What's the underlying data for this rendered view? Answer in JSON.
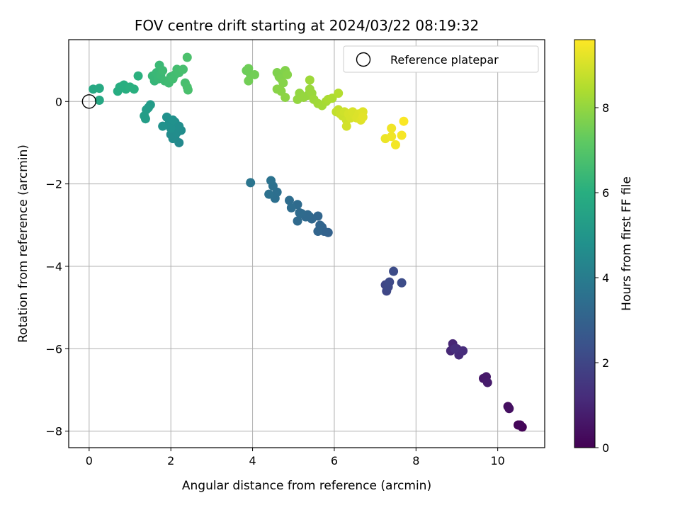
{
  "chart_data": {
    "type": "scatter",
    "title": "FOV centre drift starting at 2024/03/22 08:19:32",
    "xlabel": "Angular distance from reference (arcmin)",
    "ylabel": "Rotation from reference (arcmin)",
    "xlim": [
      -0.5,
      11.15
    ],
    "ylim": [
      -8.4,
      1.5
    ],
    "xticks": [
      0,
      2,
      4,
      6,
      8,
      10
    ],
    "yticks": [
      0,
      -2,
      -4,
      -6,
      -8
    ],
    "xtick_labels": [
      "0",
      "2",
      "4",
      "6",
      "8",
      "10"
    ],
    "ytick_labels": [
      "0",
      "−2",
      "−4",
      "−6",
      "−8"
    ],
    "grid": true,
    "legend": {
      "position": "top-right",
      "label": "Reference platepar"
    },
    "reference_point": {
      "x": 0,
      "y": 0
    },
    "colorbar": {
      "label": "Hours from first FF file",
      "colormap": "viridis",
      "range": [
        0,
        9.6
      ],
      "ticks": [
        0,
        2,
        4,
        6,
        8
      ],
      "tick_labels": [
        "0",
        "2",
        "4",
        "6",
        "8"
      ]
    },
    "points": [
      {
        "x": 10.6,
        "y": -7.9,
        "t": 0.05
      },
      {
        "x": 10.5,
        "y": -7.85,
        "t": 0.1
      },
      {
        "x": 10.55,
        "y": -7.85,
        "t": 0.15
      },
      {
        "x": 10.25,
        "y": -7.4,
        "t": 0.35
      },
      {
        "x": 10.28,
        "y": -7.45,
        "t": 0.4
      },
      {
        "x": 9.65,
        "y": -6.72,
        "t": 0.6
      },
      {
        "x": 9.72,
        "y": -6.68,
        "t": 0.65
      },
      {
        "x": 9.75,
        "y": -6.82,
        "t": 0.7
      },
      {
        "x": 8.9,
        "y": -5.88,
        "t": 1.0
      },
      {
        "x": 8.85,
        "y": -6.05,
        "t": 1.05
      },
      {
        "x": 9.0,
        "y": -6.0,
        "t": 1.1
      },
      {
        "x": 9.05,
        "y": -6.15,
        "t": 1.15
      },
      {
        "x": 9.15,
        "y": -6.05,
        "t": 1.2
      },
      {
        "x": 8.95,
        "y": -6.0,
        "t": 1.25
      },
      {
        "x": 7.25,
        "y": -4.45,
        "t": 2.0
      },
      {
        "x": 7.28,
        "y": -4.6,
        "t": 2.05
      },
      {
        "x": 7.32,
        "y": -4.5,
        "t": 2.1
      },
      {
        "x": 7.35,
        "y": -4.38,
        "t": 2.15
      },
      {
        "x": 7.45,
        "y": -4.12,
        "t": 2.2
      },
      {
        "x": 7.65,
        "y": -4.4,
        "t": 2.25
      },
      {
        "x": 5.85,
        "y": -3.18,
        "t": 3.0
      },
      {
        "x": 5.7,
        "y": -3.05,
        "t": 3.05
      },
      {
        "x": 5.75,
        "y": -3.15,
        "t": 3.05
      },
      {
        "x": 5.6,
        "y": -3.15,
        "t": 3.1
      },
      {
        "x": 5.65,
        "y": -3.0,
        "t": 3.1
      },
      {
        "x": 5.6,
        "y": -2.78,
        "t": 3.15
      },
      {
        "x": 5.45,
        "y": -2.85,
        "t": 3.2
      },
      {
        "x": 5.4,
        "y": -2.8,
        "t": 3.2
      },
      {
        "x": 5.35,
        "y": -2.75,
        "t": 3.25
      },
      {
        "x": 5.3,
        "y": -2.8,
        "t": 3.25
      },
      {
        "x": 5.2,
        "y": -2.72,
        "t": 3.3
      },
      {
        "x": 5.1,
        "y": -2.9,
        "t": 3.3
      },
      {
        "x": 5.15,
        "y": -2.7,
        "t": 3.35
      },
      {
        "x": 5.1,
        "y": -2.5,
        "t": 3.35
      },
      {
        "x": 4.95,
        "y": -2.58,
        "t": 3.4
      },
      {
        "x": 4.9,
        "y": -2.4,
        "t": 3.4
      },
      {
        "x": 4.55,
        "y": -2.35,
        "t": 3.5
      },
      {
        "x": 4.6,
        "y": -2.2,
        "t": 3.5
      },
      {
        "x": 4.4,
        "y": -2.25,
        "t": 3.55
      },
      {
        "x": 4.5,
        "y": -2.05,
        "t": 3.55
      },
      {
        "x": 4.45,
        "y": -1.92,
        "t": 3.6
      },
      {
        "x": 3.95,
        "y": -1.97,
        "t": 3.7
      },
      {
        "x": 2.2,
        "y": -1.0,
        "t": 4.5
      },
      {
        "x": 2.1,
        "y": -0.85,
        "t": 4.55
      },
      {
        "x": 2.05,
        "y": -0.9,
        "t": 4.6
      },
      {
        "x": 2.0,
        "y": -0.8,
        "t": 4.6
      },
      {
        "x": 2.15,
        "y": -0.75,
        "t": 4.65
      },
      {
        "x": 2.25,
        "y": -0.7,
        "t": 4.65
      },
      {
        "x": 2.2,
        "y": -0.6,
        "t": 4.7
      },
      {
        "x": 2.1,
        "y": -0.5,
        "t": 4.7
      },
      {
        "x": 2.0,
        "y": -0.65,
        "t": 4.75
      },
      {
        "x": 1.95,
        "y": -0.55,
        "t": 4.75
      },
      {
        "x": 2.05,
        "y": -0.45,
        "t": 4.8
      },
      {
        "x": 1.9,
        "y": -0.38,
        "t": 4.8
      },
      {
        "x": 1.8,
        "y": -0.6,
        "t": 4.85
      },
      {
        "x": 1.5,
        "y": -0.08,
        "t": 5.2
      },
      {
        "x": 1.45,
        "y": -0.15,
        "t": 5.25
      },
      {
        "x": 1.4,
        "y": -0.2,
        "t": 5.25
      },
      {
        "x": 1.35,
        "y": -0.35,
        "t": 5.3
      },
      {
        "x": 1.38,
        "y": -0.42,
        "t": 5.3
      },
      {
        "x": 0.25,
        "y": 0.03,
        "t": 5.7
      },
      {
        "x": 0.1,
        "y": 0.3,
        "t": 5.75
      },
      {
        "x": 0.25,
        "y": 0.32,
        "t": 5.8
      },
      {
        "x": 0.7,
        "y": 0.25,
        "t": 5.9
      },
      {
        "x": 0.75,
        "y": 0.35,
        "t": 5.95
      },
      {
        "x": 0.85,
        "y": 0.4,
        "t": 6.0
      },
      {
        "x": 0.9,
        "y": 0.3,
        "t": 6.0
      },
      {
        "x": 1.0,
        "y": 0.35,
        "t": 6.05
      },
      {
        "x": 1.1,
        "y": 0.3,
        "t": 6.05
      },
      {
        "x": 1.2,
        "y": 0.62,
        "t": 6.1
      },
      {
        "x": 1.6,
        "y": 0.5,
        "t": 6.3
      },
      {
        "x": 1.55,
        "y": 0.62,
        "t": 6.35
      },
      {
        "x": 1.65,
        "y": 0.7,
        "t": 6.4
      },
      {
        "x": 1.7,
        "y": 0.55,
        "t": 6.4
      },
      {
        "x": 1.75,
        "y": 0.65,
        "t": 6.45
      },
      {
        "x": 1.72,
        "y": 0.88,
        "t": 6.45
      },
      {
        "x": 1.8,
        "y": 0.75,
        "t": 6.5
      },
      {
        "x": 1.85,
        "y": 0.5,
        "t": 6.5
      },
      {
        "x": 1.95,
        "y": 0.45,
        "t": 6.55
      },
      {
        "x": 2.0,
        "y": 0.6,
        "t": 6.55
      },
      {
        "x": 2.05,
        "y": 0.55,
        "t": 6.6
      },
      {
        "x": 2.1,
        "y": 0.65,
        "t": 6.6
      },
      {
        "x": 2.15,
        "y": 0.78,
        "t": 6.65
      },
      {
        "x": 2.2,
        "y": 0.7,
        "t": 6.65
      },
      {
        "x": 2.3,
        "y": 0.78,
        "t": 6.7
      },
      {
        "x": 2.35,
        "y": 0.45,
        "t": 6.7
      },
      {
        "x": 2.4,
        "y": 0.35,
        "t": 6.75
      },
      {
        "x": 2.42,
        "y": 0.28,
        "t": 6.75
      },
      {
        "x": 2.4,
        "y": 1.07,
        "t": 6.8
      },
      {
        "x": 3.85,
        "y": 0.75,
        "t": 7.4
      },
      {
        "x": 3.9,
        "y": 0.8,
        "t": 7.45
      },
      {
        "x": 3.95,
        "y": 0.65,
        "t": 7.45
      },
      {
        "x": 4.05,
        "y": 0.65,
        "t": 7.5
      },
      {
        "x": 3.9,
        "y": 0.5,
        "t": 7.5
      },
      {
        "x": 4.6,
        "y": 0.7,
        "t": 7.7
      },
      {
        "x": 4.65,
        "y": 0.6,
        "t": 7.7
      },
      {
        "x": 4.7,
        "y": 0.55,
        "t": 7.75
      },
      {
        "x": 4.8,
        "y": 0.75,
        "t": 7.75
      },
      {
        "x": 4.85,
        "y": 0.65,
        "t": 7.8
      },
      {
        "x": 4.75,
        "y": 0.45,
        "t": 7.8
      },
      {
        "x": 4.6,
        "y": 0.3,
        "t": 7.85
      },
      {
        "x": 4.7,
        "y": 0.25,
        "t": 7.85
      },
      {
        "x": 4.8,
        "y": 0.1,
        "t": 7.9
      },
      {
        "x": 5.1,
        "y": 0.05,
        "t": 8.0
      },
      {
        "x": 5.15,
        "y": 0.2,
        "t": 8.0
      },
      {
        "x": 5.25,
        "y": 0.1,
        "t": 8.05
      },
      {
        "x": 5.35,
        "y": 0.15,
        "t": 8.05
      },
      {
        "x": 5.4,
        "y": 0.3,
        "t": 8.1
      },
      {
        "x": 5.45,
        "y": 0.2,
        "t": 8.1
      },
      {
        "x": 5.4,
        "y": 0.52,
        "t": 8.15
      },
      {
        "x": 5.5,
        "y": 0.05,
        "t": 8.15
      },
      {
        "x": 5.6,
        "y": -0.05,
        "t": 8.2
      },
      {
        "x": 5.7,
        "y": -0.1,
        "t": 8.25
      },
      {
        "x": 5.8,
        "y": 0.0,
        "t": 8.3
      },
      {
        "x": 5.85,
        "y": 0.05,
        "t": 8.35
      },
      {
        "x": 5.95,
        "y": 0.08,
        "t": 8.4
      },
      {
        "x": 6.1,
        "y": 0.2,
        "t": 8.5
      },
      {
        "x": 6.05,
        "y": -0.25,
        "t": 8.7
      },
      {
        "x": 6.1,
        "y": -0.2,
        "t": 8.75
      },
      {
        "x": 6.15,
        "y": -0.3,
        "t": 8.8
      },
      {
        "x": 6.2,
        "y": -0.35,
        "t": 8.85
      },
      {
        "x": 6.25,
        "y": -0.25,
        "t": 8.9
      },
      {
        "x": 6.3,
        "y": -0.45,
        "t": 8.9
      },
      {
        "x": 6.3,
        "y": -0.6,
        "t": 8.95
      },
      {
        "x": 6.35,
        "y": -0.3,
        "t": 9.0
      },
      {
        "x": 6.4,
        "y": -0.4,
        "t": 9.0
      },
      {
        "x": 6.45,
        "y": -0.25,
        "t": 9.05
      },
      {
        "x": 6.5,
        "y": -0.35,
        "t": 9.05
      },
      {
        "x": 6.55,
        "y": -0.4,
        "t": 9.1
      },
      {
        "x": 6.6,
        "y": -0.3,
        "t": 9.1
      },
      {
        "x": 6.65,
        "y": -0.45,
        "t": 9.15
      },
      {
        "x": 6.7,
        "y": -0.25,
        "t": 9.15
      },
      {
        "x": 6.7,
        "y": -0.38,
        "t": 9.2
      },
      {
        "x": 7.25,
        "y": -0.9,
        "t": 9.35
      },
      {
        "x": 7.4,
        "y": -0.65,
        "t": 9.4
      },
      {
        "x": 7.4,
        "y": -0.85,
        "t": 9.4
      },
      {
        "x": 7.5,
        "y": -1.05,
        "t": 9.45
      },
      {
        "x": 7.65,
        "y": -0.82,
        "t": 9.5
      },
      {
        "x": 7.7,
        "y": -0.48,
        "t": 9.55
      }
    ]
  }
}
